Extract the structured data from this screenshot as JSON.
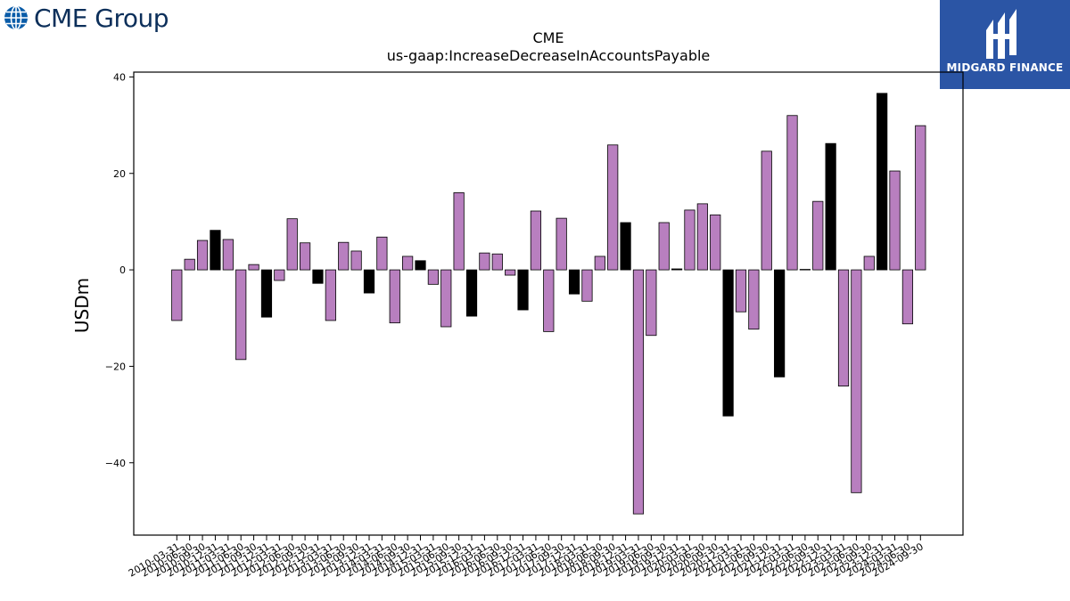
{
  "branding": {
    "left_logo_text": "CME Group",
    "right_logo_text": "MIDGARD FINANCE",
    "colors": {
      "cme_globe": "#0a5ca8",
      "cme_text": "#0c2f5a",
      "midgard_bg": "#2b55a5"
    }
  },
  "chart_data": {
    "type": "bar",
    "title": "CME",
    "subtitle": "us-gaap:IncreaseDecreaseInAccountsPayable",
    "xlabel": "",
    "ylabel": "USDm",
    "ylim": [
      -55,
      41
    ],
    "yticks": [
      40,
      20,
      0,
      -20,
      -40
    ],
    "ytick_labels": [
      "40",
      "20",
      "0",
      "−20",
      "−40"
    ],
    "grid": false,
    "colors": {
      "q1_q3": "#b87fbf",
      "q4": "#000000",
      "edge": "#000000"
    },
    "categories": [
      "2010-03-31",
      "2010-06-30",
      "2010-09-30",
      "2010-12-31",
      "2011-03-31",
      "2011-06-30",
      "2011-09-30",
      "2011-12-31",
      "2012-03-31",
      "2012-06-30",
      "2012-09-30",
      "2012-12-31",
      "2013-03-31",
      "2013-06-30",
      "2013-09-30",
      "2013-12-31",
      "2014-03-31",
      "2014-06-30",
      "2014-09-30",
      "2014-12-31",
      "2015-03-31",
      "2015-06-30",
      "2015-09-30",
      "2015-12-31",
      "2016-03-31",
      "2016-06-30",
      "2016-09-30",
      "2016-12-31",
      "2017-03-31",
      "2017-06-30",
      "2017-09-30",
      "2017-12-31",
      "2018-03-31",
      "2018-06-30",
      "2018-09-30",
      "2018-12-31",
      "2019-03-31",
      "2019-06-30",
      "2019-09-30",
      "2019-12-31",
      "2020-03-31",
      "2020-06-30",
      "2020-09-30",
      "2020-12-31",
      "2021-03-31",
      "2021-06-30",
      "2021-09-30",
      "2021-12-31",
      "2022-03-31",
      "2022-06-30",
      "2022-09-30",
      "2022-12-31",
      "2023-03-31",
      "2023-06-30",
      "2023-09-30",
      "2023-12-31",
      "2024-03-31",
      "2024-06-30",
      "2024-09-30"
    ],
    "values": [
      -10.5,
      2.2,
      6.1,
      8.2,
      6.3,
      -18.6,
      1.1,
      -9.8,
      -2.2,
      10.6,
      5.6,
      -2.8,
      -10.5,
      5.7,
      3.9,
      -4.8,
      6.8,
      -11.0,
      2.8,
      1.9,
      -3.0,
      -11.8,
      16.0,
      -9.6,
      3.5,
      3.3,
      -1.1,
      -8.3,
      12.2,
      -12.8,
      10.7,
      -5.0,
      -6.5,
      2.8,
      25.9,
      9.8,
      -50.6,
      -13.6,
      9.8,
      0.2,
      12.4,
      13.7,
      11.4,
      -30.3,
      -8.7,
      -12.3,
      24.6,
      -22.2,
      32.0,
      0.1,
      14.2,
      26.2,
      -24.1,
      -46.2,
      2.8,
      36.6,
      20.5,
      -11.2,
      29.9
    ]
  }
}
